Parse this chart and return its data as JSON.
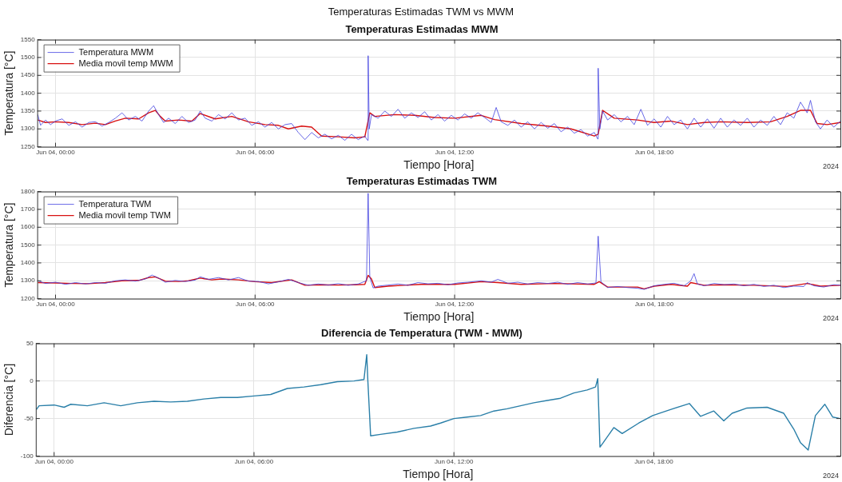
{
  "chart_data": [
    {
      "type": "line",
      "title": "Temperaturas Estimadas TWM vs MWM",
      "subtitle": "Temperaturas Estimadas MWM",
      "xlabel": "Tiempo [Hora]",
      "ylabel": "Temperatura [°C]",
      "annotations": [
        "2024"
      ],
      "xlim": [
        "2024-06-03T23:27",
        "2024-06-04T23:36"
      ],
      "xticks": [
        {
          "value": "2024-06-04T00:00",
          "label": "Jun 04, 00:00"
        },
        {
          "value": "2024-06-04T06:00",
          "label": "Jun 04, 06:00"
        },
        {
          "value": "2024-06-04T12:00",
          "label": "Jun 04, 12:00"
        },
        {
          "value": "2024-06-04T18:00",
          "label": "Jun 04, 18:00"
        }
      ],
      "ylim": [
        1250,
        1550
      ],
      "yticks": [
        1250,
        1300,
        1350,
        1400,
        1450,
        1500,
        1550
      ],
      "grid": true,
      "legend": "top left",
      "marker": "none",
      "series": [
        {
          "name": "Temperatura MWM",
          "color": "#4040e0",
          "x": [
            "2024-06-03T23:28",
            "2024-06-03T23:33",
            "2024-06-03T23:42",
            "2024-06-03T23:51",
            "2024-06-04T00:00",
            "2024-06-04T00:12",
            "2024-06-04T00:24",
            "2024-06-04T00:36",
            "2024-06-04T00:48",
            "2024-06-04T01:00",
            "2024-06-04T01:12",
            "2024-06-04T01:24",
            "2024-06-04T01:36",
            "2024-06-04T01:48",
            "2024-06-04T02:00",
            "2024-06-04T02:12",
            "2024-06-04T02:24",
            "2024-06-04T02:36",
            "2024-06-04T02:48",
            "2024-06-04T02:57",
            "2024-06-04T03:06",
            "2024-06-04T03:15",
            "2024-06-04T03:24",
            "2024-06-04T03:36",
            "2024-06-04T03:48",
            "2024-06-04T04:00",
            "2024-06-04T04:12",
            "2024-06-04T04:21",
            "2024-06-04T04:30",
            "2024-06-04T04:42",
            "2024-06-04T04:54",
            "2024-06-04T05:06",
            "2024-06-04T05:18",
            "2024-06-04T05:30",
            "2024-06-04T05:42",
            "2024-06-04T05:54",
            "2024-06-04T06:06",
            "2024-06-04T06:18",
            "2024-06-04T06:30",
            "2024-06-04T06:42",
            "2024-06-04T06:54",
            "2024-06-04T07:06",
            "2024-06-04T07:18",
            "2024-06-04T07:30",
            "2024-06-04T07:42",
            "2024-06-04T07:54",
            "2024-06-04T08:06",
            "2024-06-04T08:18",
            "2024-06-04T08:30",
            "2024-06-04T08:42",
            "2024-06-04T08:54",
            "2024-06-04T09:06",
            "2024-06-04T09:18",
            "2024-06-04T09:23",
            "2024-06-04T09:24",
            "2024-06-04T09:26",
            "2024-06-04T09:30",
            "2024-06-04T09:42",
            "2024-06-04T09:54",
            "2024-06-04T10:06",
            "2024-06-04T10:18",
            "2024-06-04T10:30",
            "2024-06-04T10:42",
            "2024-06-04T10:54",
            "2024-06-04T11:06",
            "2024-06-04T11:18",
            "2024-06-04T11:30",
            "2024-06-04T11:42",
            "2024-06-04T11:54",
            "2024-06-04T12:06",
            "2024-06-04T12:18",
            "2024-06-04T12:30",
            "2024-06-04T12:42",
            "2024-06-04T12:54",
            "2024-06-04T13:06",
            "2024-06-04T13:15",
            "2024-06-04T13:24",
            "2024-06-04T13:36",
            "2024-06-04T13:48",
            "2024-06-04T14:00",
            "2024-06-04T14:12",
            "2024-06-04T14:24",
            "2024-06-04T14:36",
            "2024-06-04T14:48",
            "2024-06-04T15:00",
            "2024-06-04T15:12",
            "2024-06-04T15:24",
            "2024-06-04T15:36",
            "2024-06-04T15:48",
            "2024-06-04T16:00",
            "2024-06-04T16:12",
            "2024-06-04T16:18",
            "2024-06-04T16:19",
            "2024-06-04T16:22",
            "2024-06-04T16:27",
            "2024-06-04T16:36",
            "2024-06-04T16:48",
            "2024-06-04T17:00",
            "2024-06-04T17:12",
            "2024-06-04T17:24",
            "2024-06-04T17:36",
            "2024-06-04T17:48",
            "2024-06-04T18:00",
            "2024-06-04T18:12",
            "2024-06-04T18:24",
            "2024-06-04T18:36",
            "2024-06-04T18:48",
            "2024-06-04T19:00",
            "2024-06-04T19:12",
            "2024-06-04T19:24",
            "2024-06-04T19:36",
            "2024-06-04T19:48",
            "2024-06-04T20:00",
            "2024-06-04T20:12",
            "2024-06-04T20:24",
            "2024-06-04T20:36",
            "2024-06-04T20:48",
            "2024-06-04T21:00",
            "2024-06-04T21:12",
            "2024-06-04T21:24",
            "2024-06-04T21:36",
            "2024-06-04T21:48",
            "2024-06-04T22:00",
            "2024-06-04T22:12",
            "2024-06-04T22:24",
            "2024-06-04T22:36",
            "2024-06-04T22:42",
            "2024-06-04T22:51",
            "2024-06-04T23:00",
            "2024-06-04T23:12",
            "2024-06-04T23:24",
            "2024-06-04T23:36"
          ],
          "values": [
            1340,
            1310,
            1325,
            1312,
            1322,
            1328,
            1310,
            1320,
            1305,
            1318,
            1320,
            1308,
            1318,
            1330,
            1345,
            1325,
            1335,
            1322,
            1350,
            1365,
            1340,
            1318,
            1330,
            1315,
            1335,
            1318,
            1325,
            1350,
            1330,
            1322,
            1340,
            1328,
            1345,
            1325,
            1330,
            1310,
            1320,
            1305,
            1318,
            1300,
            1312,
            1315,
            1290,
            1270,
            1290,
            1275,
            1285,
            1272,
            1282,
            1268,
            1285,
            1270,
            1280,
            1268,
            1505,
            1300,
            1340,
            1330,
            1350,
            1335,
            1355,
            1330,
            1345,
            1332,
            1348,
            1325,
            1340,
            1322,
            1338,
            1325,
            1342,
            1330,
            1345,
            1332,
            1318,
            1360,
            1320,
            1310,
            1325,
            1305,
            1320,
            1300,
            1318,
            1302,
            1315,
            1292,
            1305,
            1288,
            1298,
            1280,
            1290,
            1272,
            1470,
            1300,
            1350,
            1325,
            1340,
            1320,
            1335,
            1312,
            1355,
            1310,
            1328,
            1305,
            1335,
            1312,
            1325,
            1300,
            1330,
            1305,
            1328,
            1302,
            1330,
            1305,
            1325,
            1310,
            1330,
            1305,
            1325,
            1310,
            1335,
            1312,
            1345,
            1330,
            1375,
            1345,
            1380,
            1320,
            1300,
            1325,
            1305,
            1322
          ]
        },
        {
          "name": "Media movil temp MWM",
          "color": "#d81010",
          "x": [
            "2024-06-03T23:28",
            "2024-06-03T23:42",
            "2024-06-04T00:00",
            "2024-06-04T00:24",
            "2024-06-04T00:48",
            "2024-06-04T01:12",
            "2024-06-04T01:30",
            "2024-06-04T01:48",
            "2024-06-04T02:06",
            "2024-06-04T02:30",
            "2024-06-04T02:48",
            "2024-06-04T03:00",
            "2024-06-04T03:09",
            "2024-06-04T03:18",
            "2024-06-04T03:42",
            "2024-06-04T04:06",
            "2024-06-04T04:21",
            "2024-06-04T04:48",
            "2024-06-04T05:18",
            "2024-06-04T05:48",
            "2024-06-04T06:18",
            "2024-06-04T06:42",
            "2024-06-04T07:00",
            "2024-06-04T07:24",
            "2024-06-04T07:42",
            "2024-06-04T08:00",
            "2024-06-04T08:30",
            "2024-06-04T09:00",
            "2024-06-04T09:18",
            "2024-06-04T09:27",
            "2024-06-04T09:36",
            "2024-06-04T10:12",
            "2024-06-04T10:48",
            "2024-06-04T11:24",
            "2024-06-04T12:00",
            "2024-06-04T12:48",
            "2024-06-04T13:12",
            "2024-06-04T14:00",
            "2024-06-04T14:48",
            "2024-06-04T15:30",
            "2024-06-04T16:12",
            "2024-06-04T16:19",
            "2024-06-04T16:27",
            "2024-06-04T16:48",
            "2024-06-04T17:30",
            "2024-06-04T18:00",
            "2024-06-04T18:30",
            "2024-06-04T19:00",
            "2024-06-04T19:30",
            "2024-06-04T20:00",
            "2024-06-04T20:48",
            "2024-06-04T21:30",
            "2024-06-04T22:00",
            "2024-06-04T22:24",
            "2024-06-04T22:42",
            "2024-06-04T22:54",
            "2024-06-04T23:12",
            "2024-06-04T23:36"
          ],
          "values": [
            1325,
            1318,
            1320,
            1318,
            1312,
            1316,
            1312,
            1322,
            1330,
            1328,
            1345,
            1352,
            1335,
            1322,
            1325,
            1322,
            1343,
            1328,
            1335,
            1320,
            1312,
            1310,
            1300,
            1308,
            1305,
            1280,
            1278,
            1275,
            1278,
            1345,
            1335,
            1340,
            1338,
            1332,
            1330,
            1338,
            1326,
            1315,
            1308,
            1300,
            1280,
            1285,
            1352,
            1330,
            1325,
            1318,
            1322,
            1312,
            1318,
            1320,
            1318,
            1320,
            1335,
            1352,
            1352,
            1315,
            1312,
            1318
          ]
        }
      ]
    },
    {
      "type": "line",
      "title": "Temperaturas Estimadas TWM",
      "xlabel": "Tiempo [Hora]",
      "ylabel": "Temperatura [°C]",
      "annotations": [
        "2024"
      ],
      "xlim": [
        "2024-06-03T23:27",
        "2024-06-04T23:36"
      ],
      "xticks": [
        {
          "value": "2024-06-04T00:00",
          "label": "Jun 04, 00:00"
        },
        {
          "value": "2024-06-04T06:00",
          "label": "Jun 04, 06:00"
        },
        {
          "value": "2024-06-04T12:00",
          "label": "Jun 04, 12:00"
        },
        {
          "value": "2024-06-04T18:00",
          "label": "Jun 04, 18:00"
        }
      ],
      "ylim": [
        1200,
        1800
      ],
      "yticks": [
        1200,
        1300,
        1400,
        1500,
        1600,
        1700,
        1800
      ],
      "grid": true,
      "legend": "top left",
      "marker": "none",
      "series": [
        {
          "name": "Temperatura TWM",
          "color": "#4040e0",
          "x": [
            "2024-06-03T23:28",
            "2024-06-03T23:42",
            "2024-06-04T00:00",
            "2024-06-04T00:18",
            "2024-06-04T00:36",
            "2024-06-04T00:54",
            "2024-06-04T01:12",
            "2024-06-04T01:30",
            "2024-06-04T01:48",
            "2024-06-04T02:06",
            "2024-06-04T02:24",
            "2024-06-04T02:42",
            "2024-06-04T02:54",
            "2024-06-04T03:06",
            "2024-06-04T03:18",
            "2024-06-04T03:36",
            "2024-06-04T03:54",
            "2024-06-04T04:12",
            "2024-06-04T04:21",
            "2024-06-04T04:36",
            "2024-06-04T04:54",
            "2024-06-04T05:12",
            "2024-06-04T05:30",
            "2024-06-04T05:48",
            "2024-06-04T06:06",
            "2024-06-04T06:24",
            "2024-06-04T06:42",
            "2024-06-04T07:00",
            "2024-06-04T07:18",
            "2024-06-04T07:36",
            "2024-06-04T07:54",
            "2024-06-04T08:12",
            "2024-06-04T08:30",
            "2024-06-04T08:48",
            "2024-06-04T09:06",
            "2024-06-04T09:21",
            "2024-06-04T09:24",
            "2024-06-04T09:27",
            "2024-06-04T09:33",
            "2024-06-04T09:42",
            "2024-06-04T10:00",
            "2024-06-04T10:18",
            "2024-06-04T10:36",
            "2024-06-04T10:54",
            "2024-06-04T11:12",
            "2024-06-04T11:30",
            "2024-06-04T11:48",
            "2024-06-04T12:06",
            "2024-06-04T12:24",
            "2024-06-04T12:48",
            "2024-06-04T13:06",
            "2024-06-04T13:18",
            "2024-06-04T13:36",
            "2024-06-04T13:54",
            "2024-06-04T14:12",
            "2024-06-04T14:30",
            "2024-06-04T14:48",
            "2024-06-04T15:06",
            "2024-06-04T15:24",
            "2024-06-04T15:42",
            "2024-06-04T16:00",
            "2024-06-04T16:15",
            "2024-06-04T16:19",
            "2024-06-04T16:24",
            "2024-06-04T16:36",
            "2024-06-04T16:54",
            "2024-06-04T17:12",
            "2024-06-04T17:30",
            "2024-06-04T17:42",
            "2024-06-04T18:00",
            "2024-06-04T18:18",
            "2024-06-04T18:36",
            "2024-06-04T18:54",
            "2024-06-04T19:06",
            "2024-06-04T19:12",
            "2024-06-04T19:18",
            "2024-06-04T19:30",
            "2024-06-04T19:48",
            "2024-06-04T20:06",
            "2024-06-04T20:24",
            "2024-06-04T20:42",
            "2024-06-04T21:00",
            "2024-06-04T21:18",
            "2024-06-04T21:36",
            "2024-06-04T21:54",
            "2024-06-04T22:12",
            "2024-06-04T22:30",
            "2024-06-04T22:36",
            "2024-06-04T22:48",
            "2024-06-04T23:06",
            "2024-06-04T23:24",
            "2024-06-04T23:36"
          ],
          "values": [
            1300,
            1285,
            1292,
            1280,
            1290,
            1282,
            1290,
            1286,
            1300,
            1305,
            1298,
            1310,
            1332,
            1315,
            1292,
            1302,
            1296,
            1304,
            1322,
            1308,
            1318,
            1305,
            1318,
            1298,
            1296,
            1283,
            1294,
            1308,
            1290,
            1275,
            1282,
            1276,
            1284,
            1275,
            1282,
            1300,
            1790,
            1320,
            1260,
            1270,
            1276,
            1282,
            1275,
            1290,
            1283,
            1286,
            1278,
            1288,
            1292,
            1300,
            1292,
            1308,
            1286,
            1292,
            1282,
            1290,
            1285,
            1292,
            1280,
            1290,
            1282,
            1288,
            1550,
            1295,
            1262,
            1268,
            1262,
            1258,
            1252,
            1272,
            1280,
            1286,
            1272,
            1300,
            1340,
            1282,
            1272,
            1285,
            1278,
            1282,
            1272,
            1280,
            1268,
            1275,
            1262,
            1270,
            1268,
            1290,
            1272,
            1265,
            1278,
            1275
          ]
        },
        {
          "name": "Media movil temp TWM",
          "color": "#d81010",
          "x": [
            "2024-06-03T23:28",
            "2024-06-04T00:00",
            "2024-06-04T00:30",
            "2024-06-04T01:00",
            "2024-06-04T01:30",
            "2024-06-04T02:00",
            "2024-06-04T02:30",
            "2024-06-04T02:48",
            "2024-06-04T03:00",
            "2024-06-04T03:18",
            "2024-06-04T03:42",
            "2024-06-04T04:00",
            "2024-06-04T04:21",
            "2024-06-04T04:42",
            "2024-06-04T05:00",
            "2024-06-04T05:30",
            "2024-06-04T06:00",
            "2024-06-04T06:30",
            "2024-06-04T07:06",
            "2024-06-04T07:30",
            "2024-06-04T08:00",
            "2024-06-04T08:30",
            "2024-06-04T09:00",
            "2024-06-04T09:18",
            "2024-06-04T09:24",
            "2024-06-04T09:30",
            "2024-06-04T09:36",
            "2024-06-04T10:00",
            "2024-06-04T11:00",
            "2024-06-04T12:00",
            "2024-06-04T12:48",
            "2024-06-04T13:18",
            "2024-06-04T14:00",
            "2024-06-04T15:00",
            "2024-06-04T16:12",
            "2024-06-04T16:21",
            "2024-06-04T16:36",
            "2024-06-04T17:30",
            "2024-06-04T17:42",
            "2024-06-04T18:00",
            "2024-06-04T18:30",
            "2024-06-04T19:00",
            "2024-06-04T19:06",
            "2024-06-04T19:30",
            "2024-06-04T20:00",
            "2024-06-04T21:00",
            "2024-06-04T22:00",
            "2024-06-04T22:36",
            "2024-06-04T23:00",
            "2024-06-04T23:36"
          ],
          "values": [
            1290,
            1288,
            1285,
            1284,
            1290,
            1300,
            1302,
            1318,
            1322,
            1298,
            1296,
            1300,
            1315,
            1305,
            1310,
            1305,
            1295,
            1290,
            1305,
            1275,
            1278,
            1276,
            1278,
            1280,
            1330,
            1310,
            1262,
            1270,
            1280,
            1280,
            1295,
            1290,
            1280,
            1285,
            1280,
            1295,
            1265,
            1265,
            1255,
            1270,
            1280,
            1270,
            1290,
            1275,
            1278,
            1275,
            1268,
            1285,
            1270,
            1275
          ]
        }
      ]
    },
    {
      "type": "line",
      "title": "Diferencia de Temperatura (TWM - MWM)",
      "xlabel": "Tiempo [Hora]",
      "ylabel": "Diferencia [°C]",
      "annotations": [
        "2024"
      ],
      "xlim": [
        "2024-06-03T23:27",
        "2024-06-04T23:36"
      ],
      "xticks": [
        {
          "value": "2024-06-04T00:00",
          "label": "Jun 04, 00:00"
        },
        {
          "value": "2024-06-04T06:00",
          "label": "Jun 04, 06:00"
        },
        {
          "value": "2024-06-04T12:00",
          "label": "Jun 04, 12:00"
        },
        {
          "value": "2024-06-04T18:00",
          "label": "Jun 04, 18:00"
        }
      ],
      "ylim": [
        -100,
        50
      ],
      "yticks": [
        -100,
        -50,
        0,
        50
      ],
      "grid": true,
      "marker": "none",
      "series": [
        {
          "color": "#2a7fa8",
          "x": [
            "2024-06-03T23:28",
            "2024-06-03T23:33",
            "2024-06-04T00:00",
            "2024-06-04T00:18",
            "2024-06-04T00:30",
            "2024-06-04T01:00",
            "2024-06-04T01:30",
            "2024-06-04T02:00",
            "2024-06-04T02:30",
            "2024-06-04T03:00",
            "2024-06-04T03:30",
            "2024-06-04T04:00",
            "2024-06-04T04:30",
            "2024-06-04T05:00",
            "2024-06-04T05:30",
            "2024-06-04T06:00",
            "2024-06-04T06:30",
            "2024-06-04T07:00",
            "2024-06-04T07:30",
            "2024-06-04T08:00",
            "2024-06-04T08:30",
            "2024-06-04T09:00",
            "2024-06-04T09:18",
            "2024-06-04T09:23",
            "2024-06-04T09:25",
            "2024-06-04T09:30",
            "2024-06-04T09:48",
            "2024-06-04T10:18",
            "2024-06-04T10:48",
            "2024-06-04T11:18",
            "2024-06-04T11:36",
            "2024-06-04T12:00",
            "2024-06-04T12:24",
            "2024-06-04T12:48",
            "2024-06-04T13:12",
            "2024-06-04T13:36",
            "2024-06-04T14:00",
            "2024-06-04T14:24",
            "2024-06-04T14:48",
            "2024-06-04T15:12",
            "2024-06-04T15:36",
            "2024-06-04T16:00",
            "2024-06-04T16:15",
            "2024-06-04T16:19",
            "2024-06-04T16:23",
            "2024-06-04T16:29",
            "2024-06-04T16:48",
            "2024-06-04T17:03",
            "2024-06-04T17:33",
            "2024-06-04T17:58",
            "2024-06-04T18:30",
            "2024-06-04T19:04",
            "2024-06-04T19:24",
            "2024-06-04T19:48",
            "2024-06-04T20:06",
            "2024-06-04T20:21",
            "2024-06-04T20:48",
            "2024-06-04T21:24",
            "2024-06-04T21:54",
            "2024-06-04T22:12",
            "2024-06-04T22:24",
            "2024-06-04T22:38",
            "2024-06-04T22:51",
            "2024-06-04T23:08",
            "2024-06-04T23:22",
            "2024-06-04T23:36"
          ],
          "values": [
            -38,
            -33,
            -32,
            -35,
            -31,
            -33,
            -29,
            -33,
            -29,
            -27,
            -28,
            -27,
            -24,
            -22,
            -22,
            -20,
            -18,
            -10,
            -8,
            -5,
            -1,
            0,
            2,
            35,
            0,
            -73,
            -71,
            -68,
            -63,
            -60,
            -56,
            -50,
            -48,
            -46,
            -40,
            -37,
            -33,
            -29,
            -26,
            -23,
            -16,
            -12,
            -8,
            3,
            -88,
            -82,
            -62,
            -70,
            -56,
            -46,
            -38,
            -30,
            -47,
            -40,
            -53,
            -43,
            -36,
            -35,
            -43,
            -64,
            -82,
            -92,
            -46,
            -31,
            -48,
            -50
          ]
        }
      ]
    }
  ]
}
